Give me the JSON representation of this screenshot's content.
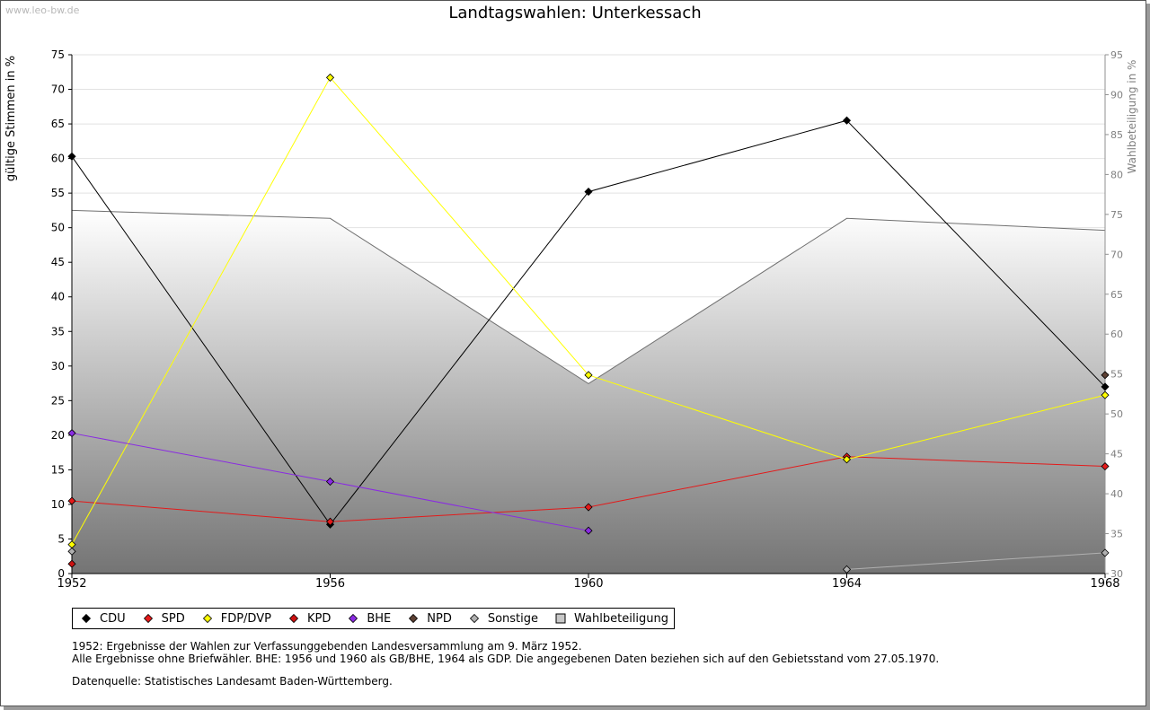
{
  "watermark": "www.leo-bw.de",
  "notes": {
    "line1": "1952: Ergebnisse der Wahlen zur Verfassunggebenden Landesversammlung am 9. März 1952.",
    "line2": "Alle Ergebnisse ohne Briefwähler. BHE: 1956 und 1960 als GB/BHE, 1964 als GDP. Die angegebenen Daten beziehen sich auf den Gebietsstand vom 27.05.1970.",
    "source": "Datenquelle: Statistisches Landesamt Baden-Württemberg."
  },
  "chart_data": {
    "type": "line",
    "title": "Landtagswahlen: Unterkessach",
    "xlabel": "",
    "ylabel": "gültige Stimmen in %",
    "y2label": "Wahlbeteiligung in %",
    "categories": [
      "1952",
      "1956",
      "1960",
      "1964",
      "1968"
    ],
    "ylim": [
      0,
      75
    ],
    "yticks": [
      0,
      5,
      10,
      15,
      20,
      25,
      30,
      35,
      40,
      45,
      50,
      55,
      60,
      65,
      70,
      75
    ],
    "y2lim": [
      30,
      95
    ],
    "y2ticks": [
      30,
      35,
      40,
      45,
      50,
      55,
      60,
      65,
      70,
      75,
      80,
      85,
      90,
      95
    ],
    "grid": true,
    "series": [
      {
        "name": "CDU",
        "color": "#000000",
        "values": [
          60.3,
          7.1,
          55.2,
          65.5,
          27.0
        ]
      },
      {
        "name": "SPD",
        "color": "#e41a1a",
        "values": [
          10.5,
          7.5,
          9.6,
          16.9,
          15.5
        ]
      },
      {
        "name": "FDP/DVP",
        "color": "#ffff00",
        "values": [
          4.2,
          71.7,
          28.7,
          16.5,
          25.8
        ]
      },
      {
        "name": "KPD",
        "color": "#cc1111",
        "values": [
          1.4,
          null,
          null,
          null,
          null
        ]
      },
      {
        "name": "BHE",
        "color": "#8a2be2",
        "values": [
          20.3,
          13.3,
          6.2,
          null,
          null
        ]
      },
      {
        "name": "NPD",
        "color": "#5c4033",
        "values": [
          null,
          null,
          null,
          null,
          28.7
        ]
      },
      {
        "name": "Sonstige",
        "color": "#b0b0b0",
        "values": [
          3.2,
          null,
          null,
          0.6,
          3.0
        ]
      }
    ],
    "area": {
      "name": "Wahlbeteiligung",
      "axis": "right",
      "values": [
        75.5,
        74.5,
        53.8,
        74.5,
        73.0
      ]
    },
    "legend": [
      {
        "name": "CDU",
        "color": "#000000",
        "shape": "diamond"
      },
      {
        "name": "SPD",
        "color": "#e41a1a",
        "shape": "diamond"
      },
      {
        "name": "FDP/DVP",
        "color": "#ffff00",
        "shape": "diamond"
      },
      {
        "name": "KPD",
        "color": "#cc1111",
        "shape": "diamond"
      },
      {
        "name": "BHE",
        "color": "#8a2be2",
        "shape": "diamond"
      },
      {
        "name": "NPD",
        "color": "#5c4033",
        "shape": "diamond"
      },
      {
        "name": "Sonstige",
        "color": "#b0b0b0",
        "shape": "diamond"
      },
      {
        "name": "Wahlbeteiligung",
        "color": "#c8c8c8",
        "shape": "square"
      }
    ],
    "legend_position": "bottom-left"
  }
}
